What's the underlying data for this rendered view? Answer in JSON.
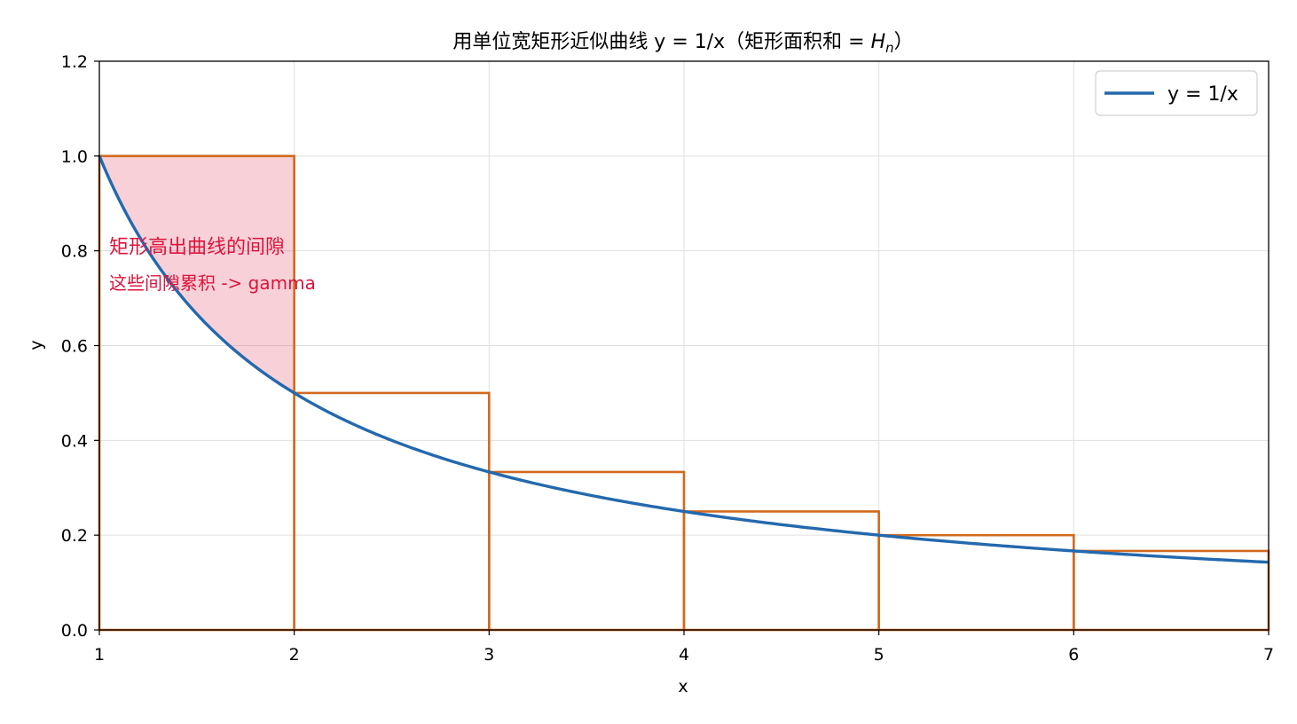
{
  "chart_data": {
    "type": "line",
    "title": "用单位宽矩形近似曲线 y = 1/x（矩形面积和 = ",
    "title_math_main": "H",
    "title_math_sub": "n",
    "title_close": "）",
    "xlabel": "x",
    "ylabel": "y",
    "xlim": [
      1,
      7
    ],
    "ylim": [
      0,
      1.2
    ],
    "xticks": [
      1,
      2,
      3,
      4,
      5,
      6,
      7
    ],
    "yticks": [
      0.0,
      0.2,
      0.4,
      0.6,
      0.8,
      1.0,
      1.2
    ],
    "xtick_labels": [
      "1",
      "2",
      "3",
      "4",
      "5",
      "6",
      "7"
    ],
    "ytick_labels": [
      "0.0",
      "0.2",
      "0.4",
      "0.6",
      "0.8",
      "1.0",
      "1.2"
    ],
    "grid": true,
    "legend_position": "top-right",
    "series": [
      {
        "name": "y = 1/x",
        "function": "1/x",
        "color": "#2369ad"
      }
    ],
    "rectangles": [
      {
        "x": 1,
        "width": 1,
        "height": 1.0
      },
      {
        "x": 2,
        "width": 1,
        "height": 0.5
      },
      {
        "x": 3,
        "width": 1,
        "height": 0.3333
      },
      {
        "x": 4,
        "width": 1,
        "height": 0.25
      },
      {
        "x": 5,
        "width": 1,
        "height": 0.2
      },
      {
        "x": 6,
        "width": 1,
        "height": 0.1667
      }
    ],
    "rect_color": "#d2691e",
    "gap_fill": {
      "from": 1,
      "to": 2,
      "color": "#dc143c"
    },
    "annotations": [
      {
        "text": "矩形高出曲线的间隙",
        "x": 1.05,
        "y": 0.81
      },
      {
        "text": "这些间隙累积 -> gamma",
        "x": 1.05,
        "y": 0.73
      }
    ],
    "annotation_color": "#dc143c"
  }
}
